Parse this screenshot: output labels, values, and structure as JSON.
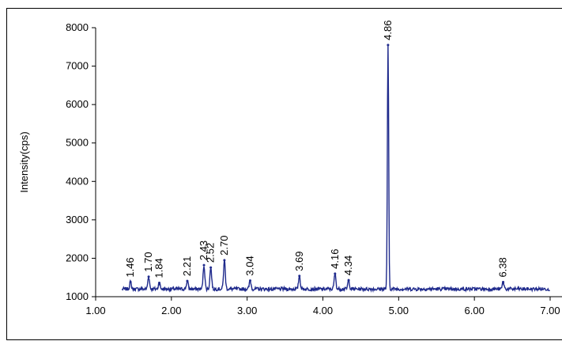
{
  "chart_data": {
    "type": "line",
    "title": "",
    "xlabel": "",
    "ylabel": "Intensity(cps)",
    "xlim": [
      1.0,
      7.0
    ],
    "ylim": [
      1000,
      8000
    ],
    "grid": false,
    "legend": "none",
    "line_color": "#1f2a8c",
    "x_ticks": [
      1.0,
      2.0,
      3.0,
      4.0,
      5.0,
      6.0,
      7.0
    ],
    "x_tick_labels": [
      "1.00",
      "2.00",
      "3.00",
      "4.00",
      "5.00",
      "6.00",
      "7.00"
    ],
    "y_ticks": [
      1000,
      2000,
      3000,
      4000,
      5000,
      6000,
      7000,
      8000
    ],
    "y_tick_labels": [
      "1000",
      "2000",
      "3000",
      "4000",
      "5000",
      "6000",
      "7000",
      "8000"
    ],
    "baseline": 1200,
    "x_start": 1.35,
    "peaks": [
      {
        "x": 1.46,
        "y": 1380,
        "label": "1.46"
      },
      {
        "x": 1.7,
        "y": 1520,
        "label": "1.70"
      },
      {
        "x": 1.84,
        "y": 1360,
        "label": "1.84"
      },
      {
        "x": 2.21,
        "y": 1410,
        "label": "2.21"
      },
      {
        "x": 2.43,
        "y": 1820,
        "label": "2.43"
      },
      {
        "x": 2.52,
        "y": 1760,
        "label": "2.52"
      },
      {
        "x": 2.7,
        "y": 1950,
        "label": "2.70"
      },
      {
        "x": 3.04,
        "y": 1420,
        "label": "3.04"
      },
      {
        "x": 3.69,
        "y": 1540,
        "label": "3.69"
      },
      {
        "x": 4.16,
        "y": 1600,
        "label": "4.16"
      },
      {
        "x": 4.34,
        "y": 1430,
        "label": "4.34"
      },
      {
        "x": 4.86,
        "y": 7550,
        "label": "4.86"
      },
      {
        "x": 6.38,
        "y": 1380,
        "label": "6.38"
      }
    ]
  }
}
